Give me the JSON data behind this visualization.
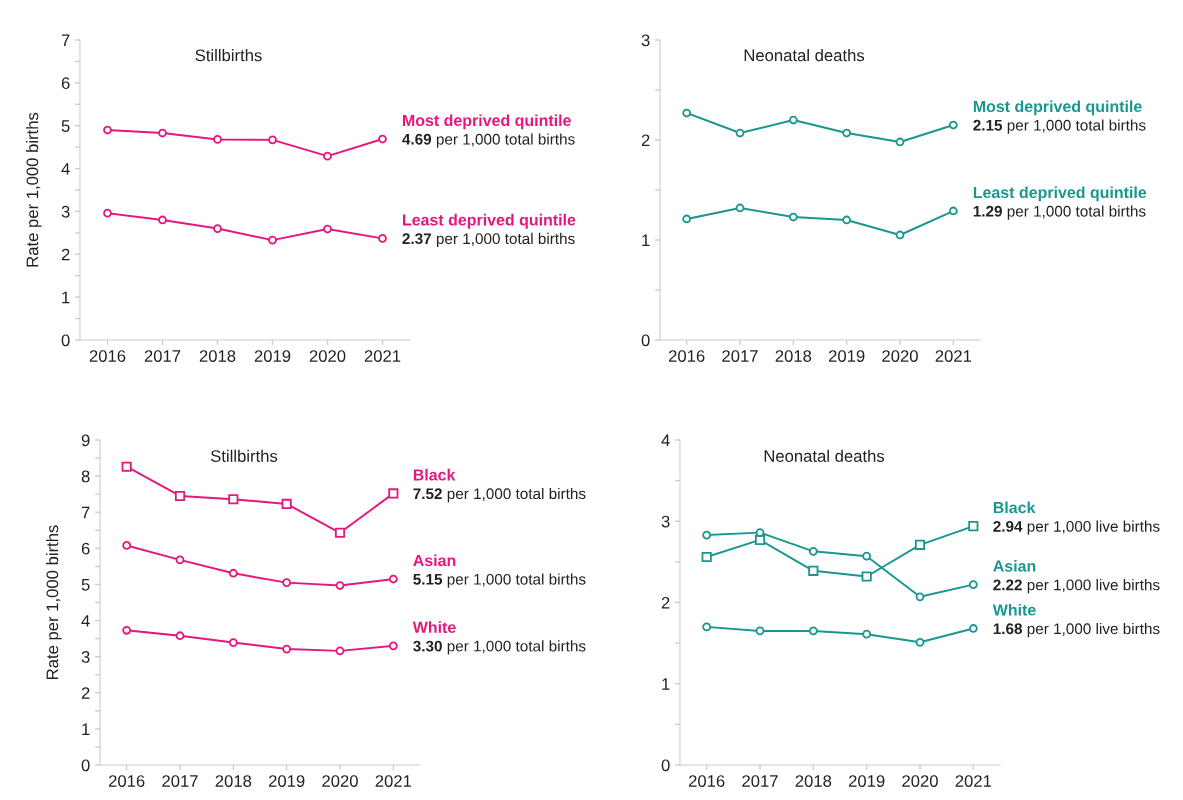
{
  "chart_data": [
    {
      "type": "line",
      "title": "Stillbirths",
      "ylabel": "Rate per 1,000 births",
      "categories": [
        "2016",
        "2017",
        "2018",
        "2019",
        "2020",
        "2021"
      ],
      "ylim": [
        0,
        7
      ],
      "yticks": [
        0,
        {
          "value": 0.5,
          "label": null
        },
        1,
        {
          "value": 1.5,
          "label": null
        },
        2,
        {
          "value": 2.5,
          "label": null
        },
        3,
        {
          "value": 3.5,
          "label": null
        },
        4,
        {
          "value": 4.5,
          "label": null
        },
        5,
        {
          "value": 5.5,
          "label": null
        },
        6,
        {
          "value": 6.5,
          "label": null
        },
        7
      ],
      "grid": false,
      "legend": false,
      "series": [
        {
          "name": "Most deprived quintile",
          "color": "#e5177e",
          "marker": "circle",
          "values": [
            4.9,
            4.83,
            4.68,
            4.67,
            4.29,
            4.69
          ]
        },
        {
          "name": "Least deprived quintile",
          "color": "#e5177e",
          "marker": "circle",
          "values": [
            2.96,
            2.8,
            2.6,
            2.33,
            2.59,
            2.37
          ]
        }
      ],
      "annotations": [
        {
          "text": "4.69 per 1,000 total births",
          "x": "2021",
          "y": 4.69
        },
        {
          "text": "2.37 per 1,000 total births",
          "x": "2021",
          "y": 2.37
        }
      ]
    },
    {
      "type": "line",
      "title": "Neonatal deaths",
      "categories": [
        "2016",
        "2017",
        "2018",
        "2019",
        "2020",
        "2021"
      ],
      "ylim": [
        0,
        3
      ],
      "yticks": [
        0,
        {
          "value": 0.5,
          "label": null
        },
        1,
        {
          "value": 1.5,
          "label": null
        },
        2,
        {
          "value": 2.5,
          "label": null
        },
        3
      ],
      "grid": false,
      "legend": false,
      "series": [
        {
          "name": "Most deprived quintile",
          "color": "#1a9690",
          "marker": "circle",
          "values": [
            2.27,
            2.07,
            2.2,
            2.07,
            1.98,
            2.15
          ]
        },
        {
          "name": "Least deprived quintile",
          "color": "#1a9690",
          "marker": "circle",
          "values": [
            1.21,
            1.32,
            1.23,
            1.2,
            1.05,
            1.29
          ]
        }
      ],
      "annotations": [
        {
          "text": "2.15 per 1,000 total births",
          "x": "2021",
          "y": 2.15
        },
        {
          "text": "1.29 per 1,000 total births",
          "x": "2021",
          "y": 1.29
        }
      ]
    },
    {
      "type": "line",
      "title": "Stillbirths",
      "ylabel": "Rate per 1,000 births",
      "categories": [
        "2016",
        "2017",
        "2018",
        "2019",
        "2020",
        "2021"
      ],
      "ylim": [
        0,
        9
      ],
      "yticks": [
        0,
        {
          "value": 0.5,
          "label": null
        },
        1,
        {
          "value": 1.5,
          "label": null
        },
        2,
        {
          "value": 2.5,
          "label": null
        },
        3,
        {
          "value": 3.5,
          "label": null
        },
        4,
        {
          "value": 4.5,
          "label": null
        },
        5,
        {
          "value": 5.5,
          "label": null
        },
        6,
        {
          "value": 6.5,
          "label": null
        },
        7,
        {
          "value": 7.5,
          "label": null
        },
        8,
        {
          "value": 8.5,
          "label": null
        },
        9
      ],
      "grid": false,
      "legend": false,
      "series": [
        {
          "name": "Black",
          "color": "#e5177e",
          "marker": "square",
          "values": [
            8.26,
            7.45,
            7.36,
            7.23,
            6.43,
            7.52
          ]
        },
        {
          "name": "Asian",
          "color": "#e5177e",
          "marker": "circle",
          "values": [
            6.08,
            5.68,
            5.31,
            5.05,
            4.97,
            5.15
          ]
        },
        {
          "name": "White",
          "color": "#e5177e",
          "marker": "circle",
          "values": [
            3.73,
            3.58,
            3.39,
            3.21,
            3.16,
            3.3
          ]
        }
      ],
      "annotations": [
        {
          "text": "7.52 per 1,000 total births",
          "x": "2021",
          "y": 7.52
        },
        {
          "text": "5.15 per 1,000 total births",
          "x": "2021",
          "y": 5.15
        },
        {
          "text": "3.30 per 1,000 total births",
          "x": "2021",
          "y": 3.3
        }
      ]
    },
    {
      "type": "line",
      "title": "Neonatal deaths",
      "categories": [
        "2016",
        "2017",
        "2018",
        "2019",
        "2020",
        "2021"
      ],
      "ylim": [
        0,
        4
      ],
      "yticks": [
        0,
        {
          "value": 0.5,
          "label": null
        },
        1,
        {
          "value": 1.5,
          "label": null
        },
        2,
        {
          "value": 2.5,
          "label": null
        },
        3,
        {
          "value": 3.5,
          "label": null
        },
        4
      ],
      "grid": false,
      "legend": false,
      "series": [
        {
          "name": "Black",
          "color": "#1a9690",
          "marker": "square",
          "values": [
            2.56,
            2.77,
            2.39,
            2.32,
            2.71,
            2.94
          ]
        },
        {
          "name": "Asian",
          "color": "#1a9690",
          "marker": "circle",
          "values": [
            2.83,
            2.86,
            2.63,
            2.57,
            2.07,
            2.22
          ]
        },
        {
          "name": "White",
          "color": "#1a9690",
          "marker": "circle",
          "values": [
            1.7,
            1.65,
            1.65,
            1.61,
            1.51,
            1.68
          ]
        }
      ],
      "annotations": [
        {
          "text": "2.94 per 1,000 live births",
          "x": "2021",
          "y": 2.94
        },
        {
          "text": "2.22 per 1,000 live births",
          "x": "2021",
          "y": 2.22
        },
        {
          "text": "1.68 per 1,000 live births",
          "x": "2021",
          "y": 1.68
        }
      ]
    }
  ]
}
